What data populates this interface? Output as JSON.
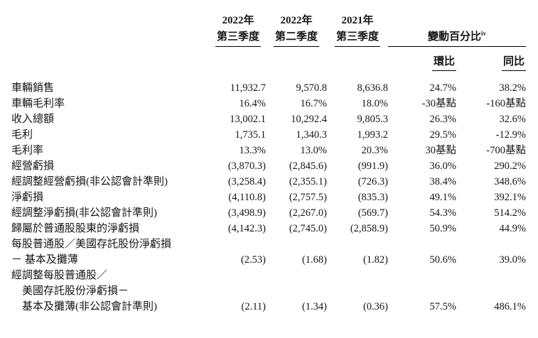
{
  "table": {
    "columns": {
      "q3_2022": {
        "line1": "2022年",
        "line2": "第三季度"
      },
      "q2_2022": {
        "line1": "2022年",
        "line2": "第二季度"
      },
      "q3_2021": {
        "line1": "2021年",
        "line2": "第三季度"
      },
      "change": {
        "label": "變動百分比",
        "footnote": "iv",
        "qoq": "環比",
        "yoy": "同比"
      }
    },
    "rows": [
      {
        "label": "車輛銷售",
        "values": [
          "11,932.7",
          "9,570.8",
          "8,636.8",
          "24.7%",
          "38.2%"
        ]
      },
      {
        "label": "車輛毛利率",
        "values": [
          "16.4%",
          "16.7%",
          "18.0%",
          "-30基點",
          "-160基點"
        ]
      },
      {
        "label": "收入總額",
        "values": [
          "13,002.1",
          "10,292.4",
          "9,805.3",
          "26.3%",
          "32.6%"
        ]
      },
      {
        "label": "毛利",
        "values": [
          "1,735.1",
          "1,340.3",
          "1,993.2",
          "29.5%",
          "-12.9%"
        ]
      },
      {
        "label": "毛利率",
        "values": [
          "13.3%",
          "13.0%",
          "20.3%",
          "30基點",
          "-700基點"
        ]
      },
      {
        "label": "經營虧損",
        "values": [
          "(3,870.3)",
          "(2,845.6)",
          "(991.9)",
          "36.0%",
          "290.2%"
        ]
      },
      {
        "label": "經調整經營虧損(非公認會計準則)",
        "values": [
          "(3,258.4)",
          "(2,355.1)",
          "(726.3)",
          "38.4%",
          "348.6%"
        ]
      },
      {
        "label": "淨虧損",
        "values": [
          "(4,110.8)",
          "(2,757.5)",
          "(835.3)",
          "49.1%",
          "392.1%"
        ]
      },
      {
        "label": "經調整淨虧損(非公認會計準則)",
        "values": [
          "(3,498.9)",
          "(2,267.0)",
          "(569.7)",
          "54.3%",
          "514.2%"
        ]
      },
      {
        "label": "歸屬於普通股股東的淨虧損",
        "values": [
          "(4,142.3)",
          "(2,745.0)",
          "(2,858.9)",
          "50.9%",
          "44.9%"
        ]
      },
      {
        "label": "每股普通股／美國存託股份淨虧損",
        "values": [
          "",
          "",
          "",
          "",
          ""
        ]
      },
      {
        "label": "－ 基本及攤薄",
        "values": [
          "(2.53)",
          "(1.68)",
          "(1.82)",
          "50.6%",
          "39.0%"
        ]
      },
      {
        "label": "經調整每股普通股／",
        "values": [
          "",
          "",
          "",
          "",
          ""
        ]
      },
      {
        "label": "美國存託股份淨虧損－",
        "values": [
          "",
          "",
          "",
          "",
          ""
        ],
        "indent": true
      },
      {
        "label": "基本及攤薄(非公認會計準則)",
        "values": [
          "(2.11)",
          "(1.34)",
          "(0.36)",
          "57.5%",
          "486.1%"
        ],
        "indent": true
      }
    ]
  }
}
